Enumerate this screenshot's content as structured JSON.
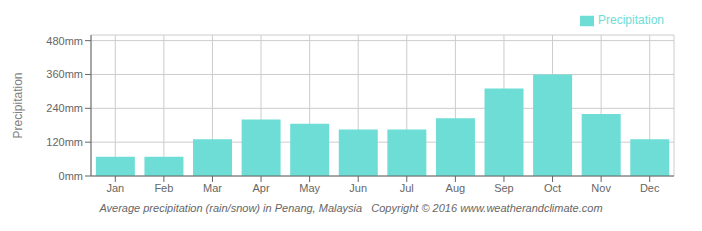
{
  "chart_data": {
    "type": "bar",
    "subtitle": "Average precipitation (rain/snow) in Penang, Malaysia   Copyright © 2016 www.weatherandclimate.com",
    "y_label": "Precipitation",
    "categories": [
      "Jan",
      "Feb",
      "Mar",
      "Apr",
      "May",
      "Jun",
      "Jul",
      "Aug",
      "Sep",
      "Oct",
      "Nov",
      "Dec"
    ],
    "series": [
      {
        "name": "Precipitation",
        "color": "#6EDDD6",
        "values": [
          68,
          68,
          130,
          200,
          185,
          165,
          165,
          205,
          310,
          360,
          220,
          130
        ]
      }
    ],
    "ylim": [
      0,
      500
    ],
    "yticks": [
      {
        "value": 0,
        "label": "0mm"
      },
      {
        "value": 120,
        "label": "120mm"
      },
      {
        "value": 240,
        "label": "240mm"
      },
      {
        "value": 360,
        "label": "360mm"
      },
      {
        "value": 480,
        "label": "480mm"
      }
    ],
    "grid": true,
    "legend": "upper right"
  }
}
